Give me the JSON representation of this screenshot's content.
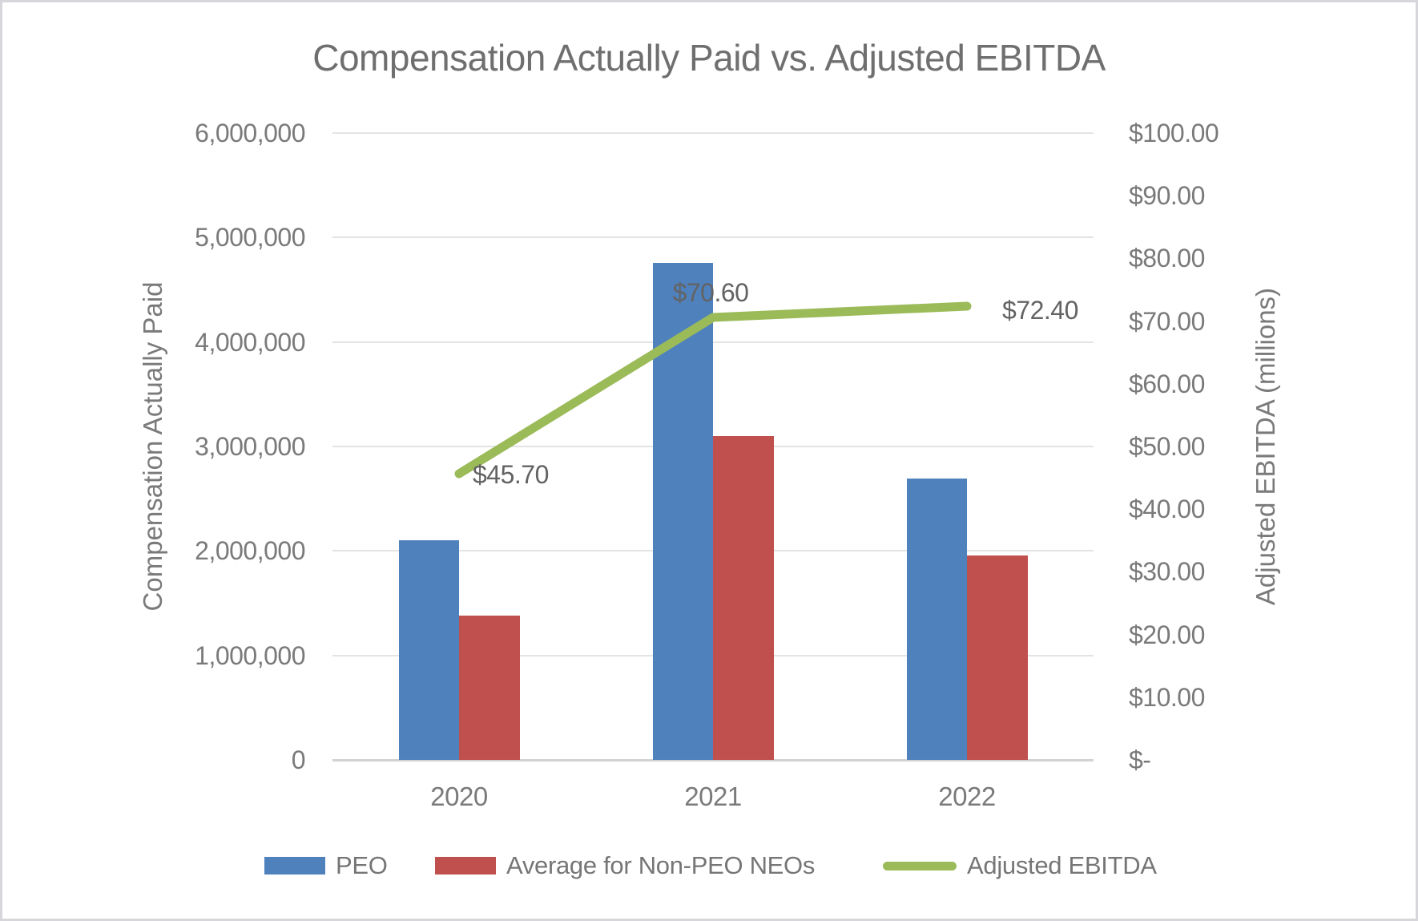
{
  "chart_data": {
    "type": "combo-bar-line",
    "title": "Compensation Actually Paid vs. Adjusted EBITDA",
    "categories": [
      "2020",
      "2021",
      "2022"
    ],
    "series": [
      {
        "name": "PEO",
        "type": "bar",
        "axis": "left",
        "color": "#4F81BD",
        "values": [
          2100000,
          4760000,
          2690000
        ]
      },
      {
        "name": "Average for Non-PEO NEOs",
        "type": "bar",
        "axis": "left",
        "color": "#C0504D",
        "values": [
          1380000,
          3100000,
          1960000
        ]
      },
      {
        "name": "Adjusted EBITDA",
        "type": "line",
        "axis": "right",
        "color": "#9BBB59",
        "values": [
          45.7,
          70.6,
          72.4
        ],
        "point_labels": [
          "$45.70",
          "$70.60",
          "$72.40"
        ]
      }
    ],
    "left_axis": {
      "label": "Compensation Actually Paid",
      "range": [
        0,
        6000000
      ],
      "ticks": [
        "6,000,000",
        "5,000,000",
        "4,000,000",
        "3,000,000",
        "2,000,000",
        "1,000,000",
        "0"
      ]
    },
    "right_axis": {
      "label": "Adjusted EBITDA (millions)",
      "range": [
        0,
        100
      ],
      "ticks": [
        "$100.00",
        "$90.00",
        "$80.00",
        "$70.00",
        "$60.00",
        "$50.00",
        "$40.00",
        "$30.00",
        "$20.00",
        "$10.00",
        "$-"
      ]
    },
    "grid": "horizontal",
    "legend_position": "bottom"
  }
}
